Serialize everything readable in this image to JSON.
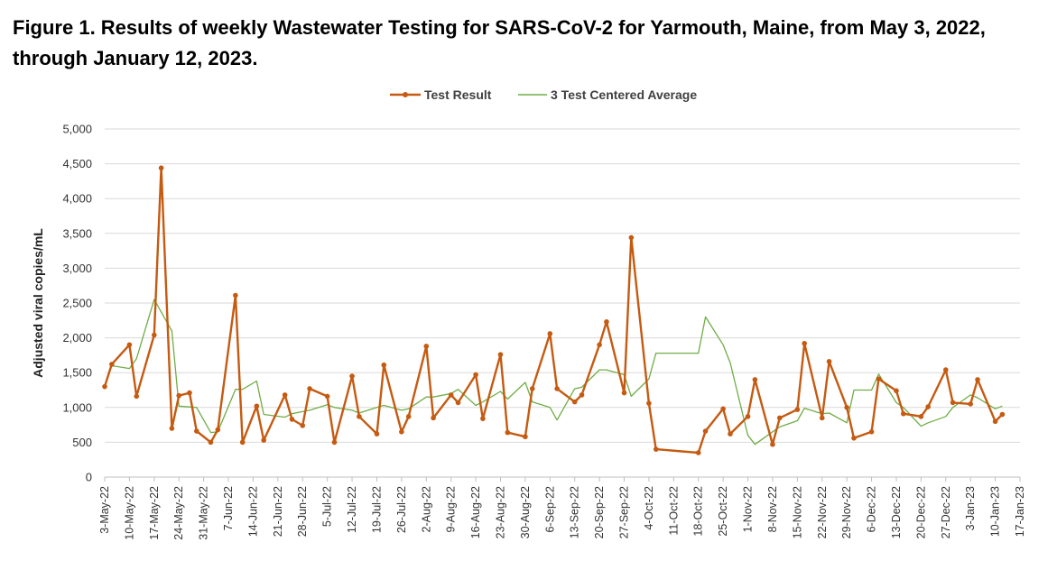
{
  "chart_data": {
    "type": "line",
    "title": "Figure 1. Results of weekly Wastewater Testing for SARS-CoV-2 for Yarmouth, Maine, from May 3, 2022, through January 12, 2023.",
    "xlabel": "",
    "ylabel": "Adjusted viral copies/mL",
    "ylim": [
      0,
      5000
    ],
    "yticks": [
      0,
      500,
      1000,
      1500,
      2000,
      2500,
      3000,
      3500,
      4000,
      4500,
      5000
    ],
    "ytick_labels": [
      "0",
      "500",
      "1,000",
      "1,500",
      "2,000",
      "2,500",
      "3,000",
      "3,500",
      "4,000",
      "4,500",
      "5,000"
    ],
    "x_day_range": [
      0,
      259
    ],
    "x_ticks": [
      "3-May-22",
      "10-May-22",
      "17-May-22",
      "24-May-22",
      "31-May-22",
      "7-Jun-22",
      "14-Jun-22",
      "21-Jun-22",
      "28-Jun-22",
      "5-Jul-22",
      "12-Jul-22",
      "19-Jul-22",
      "26-Jul-22",
      "2-Aug-22",
      "9-Aug-22",
      "16-Aug-22",
      "23-Aug-22",
      "30-Aug-22",
      "6-Sep-22",
      "13-Sep-22",
      "20-Sep-22",
      "27-Sep-22",
      "4-Oct-22",
      "11-Oct-22",
      "18-Oct-22",
      "25-Oct-22",
      "1-Nov-22",
      "8-Nov-22",
      "15-Nov-22",
      "22-Nov-22",
      "29-Nov-22",
      "6-Dec-22",
      "13-Dec-22",
      "20-Dec-22",
      "27-Dec-22",
      "3-Jan-23",
      "10-Jan-23",
      "17-Jan-23"
    ],
    "grid": true,
    "legend_position": "top-center",
    "series": [
      {
        "name": "Test Result",
        "color": "#C55A11",
        "marker": "circle",
        "x_days": [
          0,
          2,
          7,
          9,
          14,
          16,
          19,
          21,
          24,
          26,
          30,
          32,
          37,
          39,
          43,
          45,
          51,
          53,
          56,
          58,
          63,
          65,
          70,
          72,
          77,
          79,
          84,
          86,
          91,
          93,
          98,
          100,
          105,
          107,
          112,
          114,
          119,
          121,
          126,
          128,
          133,
          135,
          140,
          142,
          147,
          149,
          154,
          156,
          168,
          170,
          175,
          177,
          182,
          184,
          189,
          191,
          196,
          198,
          203,
          205,
          210,
          212,
          217,
          219,
          224,
          226,
          231,
          233,
          238,
          240,
          245,
          247,
          252,
          254
        ],
        "values": [
          1300,
          1620,
          1900,
          1160,
          2040,
          4440,
          700,
          1170,
          1210,
          660,
          500,
          680,
          2610,
          500,
          1020,
          530,
          1180,
          830,
          740,
          1270,
          1160,
          500,
          1450,
          870,
          620,
          1610,
          650,
          870,
          1880,
          850,
          1180,
          1070,
          1470,
          840,
          1760,
          640,
          580,
          1270,
          2060,
          1270,
          1080,
          1180,
          1900,
          2230,
          1210,
          3440,
          1060,
          400,
          350,
          660,
          980,
          620,
          870,
          1400,
          470,
          850,
          970,
          1920,
          850,
          1660,
          1000,
          560,
          650,
          1410,
          1240,
          910,
          870,
          1010,
          1540,
          1070,
          1050,
          1400,
          800,
          900
        ]
      },
      {
        "name": "3 Test Centered Average",
        "color": "#70AD47",
        "marker": "none",
        "x_days": [
          0,
          2,
          7,
          9,
          14,
          19,
          21,
          26,
          30,
          32,
          37,
          39,
          43,
          45,
          51,
          53,
          56,
          58,
          63,
          65,
          70,
          72,
          77,
          79,
          84,
          86,
          91,
          93,
          98,
          100,
          105,
          107,
          112,
          114,
          119,
          121,
          126,
          128,
          133,
          135,
          140,
          142,
          147,
          149,
          154,
          156,
          168,
          170,
          175,
          177,
          182,
          184,
          189,
          191,
          196,
          198,
          203,
          205,
          210,
          212,
          217,
          219,
          224,
          226,
          231,
          233,
          238,
          240,
          245,
          247,
          252,
          254
        ],
        "values": [
          1300,
          1600,
          1560,
          1700,
          2550,
          2100,
          1020,
          1000,
          640,
          650,
          1260,
          1260,
          1380,
          900,
          860,
          910,
          940,
          960,
          1040,
          1000,
          960,
          920,
          1000,
          1030,
          960,
          980,
          1150,
          1150,
          1200,
          1260,
          1030,
          1080,
          1230,
          1120,
          1360,
          1080,
          1000,
          820,
          1270,
          1290,
          1540,
          1540,
          1470,
          1160,
          1410,
          1780,
          1780,
          2300,
          1900,
          1640,
          600,
          470,
          650,
          720,
          810,
          990,
          910,
          920,
          780,
          1250,
          1250,
          1480,
          1070,
          1000,
          730,
          780,
          870,
          1000,
          1180,
          1140,
          980,
          1020
        ]
      }
    ]
  }
}
